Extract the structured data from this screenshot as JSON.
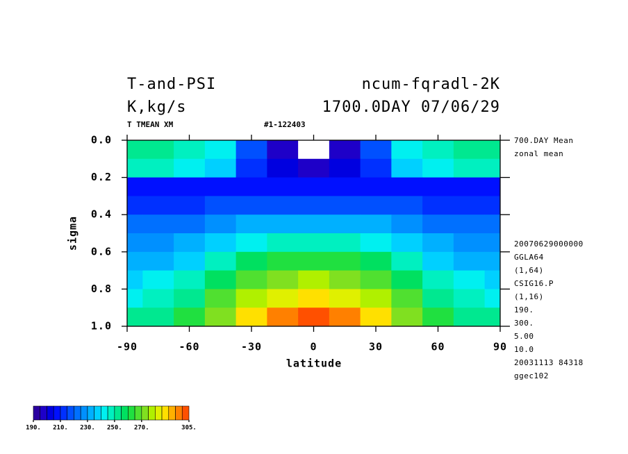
{
  "chart_data": {
    "type": "contour",
    "title": "T-and-PSI",
    "experiment": "ncum-fqradl-2K",
    "units": "K,kg/s",
    "time": "1700.0DAY 07/06/29",
    "variable_label": "T TMEAN XM",
    "run_label": "#1-122403",
    "notes_top": [
      "700.DAY Mean",
      "zonal mean"
    ],
    "notes_bottom": [
      "20070629000000",
      "GGLA64",
      "(1,64)",
      "CSIG16.P",
      "(1,16)",
      "190.",
      "300.",
      "5.00",
      "10.0",
      "20031113  84318",
      "ggec102"
    ],
    "xlabel": "latitude",
    "ylabel": "sigma",
    "x": [
      -90,
      -75,
      -60,
      -45,
      -30,
      -15,
      0,
      15,
      30,
      45,
      60,
      75,
      90
    ],
    "y": [
      0.05,
      0.15,
      0.25,
      0.35,
      0.45,
      0.55,
      0.65,
      0.75,
      0.85,
      0.95
    ],
    "z": [
      [
        250,
        250,
        248,
        240,
        215,
        195,
        185,
        195,
        215,
        240,
        248,
        250,
        250
      ],
      [
        245,
        245,
        243,
        235,
        212,
        200,
        195,
        200,
        212,
        235,
        243,
        245,
        245
      ],
      [
        208,
        207,
        206,
        205,
        205,
        205,
        205,
        205,
        205,
        205,
        206,
        207,
        208
      ],
      [
        212,
        212,
        213,
        215,
        217,
        218,
        218,
        218,
        217,
        215,
        213,
        212,
        212
      ],
      [
        220,
        221,
        223,
        227,
        231,
        233,
        234,
        233,
        231,
        227,
        223,
        221,
        220
      ],
      [
        226,
        228,
        231,
        237,
        243,
        246,
        247,
        246,
        243,
        237,
        231,
        228,
        226
      ],
      [
        232,
        234,
        239,
        247,
        255,
        260,
        262,
        260,
        255,
        247,
        239,
        234,
        232
      ],
      [
        238,
        241,
        247,
        257,
        267,
        273,
        275,
        273,
        267,
        257,
        247,
        241,
        238
      ],
      [
        244,
        247,
        254,
        265,
        276,
        284,
        287,
        284,
        276,
        265,
        254,
        247,
        244
      ],
      [
        250,
        253,
        261,
        273,
        285,
        295,
        300,
        295,
        285,
        273,
        261,
        253,
        250
      ]
    ],
    "xlim": [
      -90,
      90
    ],
    "xticks": [
      -90,
      -60,
      -30,
      0,
      30,
      60,
      90
    ],
    "ylim": [
      0,
      1
    ],
    "y_inverted": true,
    "yticks": [
      {
        "value": 0,
        "label": "0.0"
      },
      {
        "value": 0.2,
        "label": "0.2"
      },
      {
        "value": 0.4,
        "label": "0.4"
      },
      {
        "value": 0.6,
        "label": "0.6"
      },
      {
        "value": 0.8,
        "label": "0.8"
      },
      {
        "value": 1,
        "label": "1.0"
      }
    ],
    "levels": [
      190,
      195,
      200,
      205,
      210,
      215,
      220,
      225,
      230,
      235,
      240,
      245,
      250,
      255,
      260,
      265,
      270,
      275,
      280,
      285,
      290,
      295,
      300,
      305
    ],
    "colors": [
      "#2a00a0",
      "#1e00c8",
      "#0000e0",
      "#0010ff",
      "#0030ff",
      "#0050ff",
      "#0070ff",
      "#0090ff",
      "#00b0ff",
      "#00d0ff",
      "#00f0f0",
      "#00f0c0",
      "#00e890",
      "#00e060",
      "#20e040",
      "#50e030",
      "#80e020",
      "#b0f000",
      "#e0f000",
      "#ffe000",
      "#ffb000",
      "#ff8000",
      "#ff5000"
    ],
    "colorbar_ticks": [
      {
        "value": 190,
        "label": "190."
      },
      {
        "value": 210,
        "label": "210."
      },
      {
        "value": 230,
        "label": "230."
      },
      {
        "value": 250,
        "label": "250."
      },
      {
        "value": 270,
        "label": "270."
      },
      {
        "value": 305,
        "label": "305."
      }
    ]
  }
}
